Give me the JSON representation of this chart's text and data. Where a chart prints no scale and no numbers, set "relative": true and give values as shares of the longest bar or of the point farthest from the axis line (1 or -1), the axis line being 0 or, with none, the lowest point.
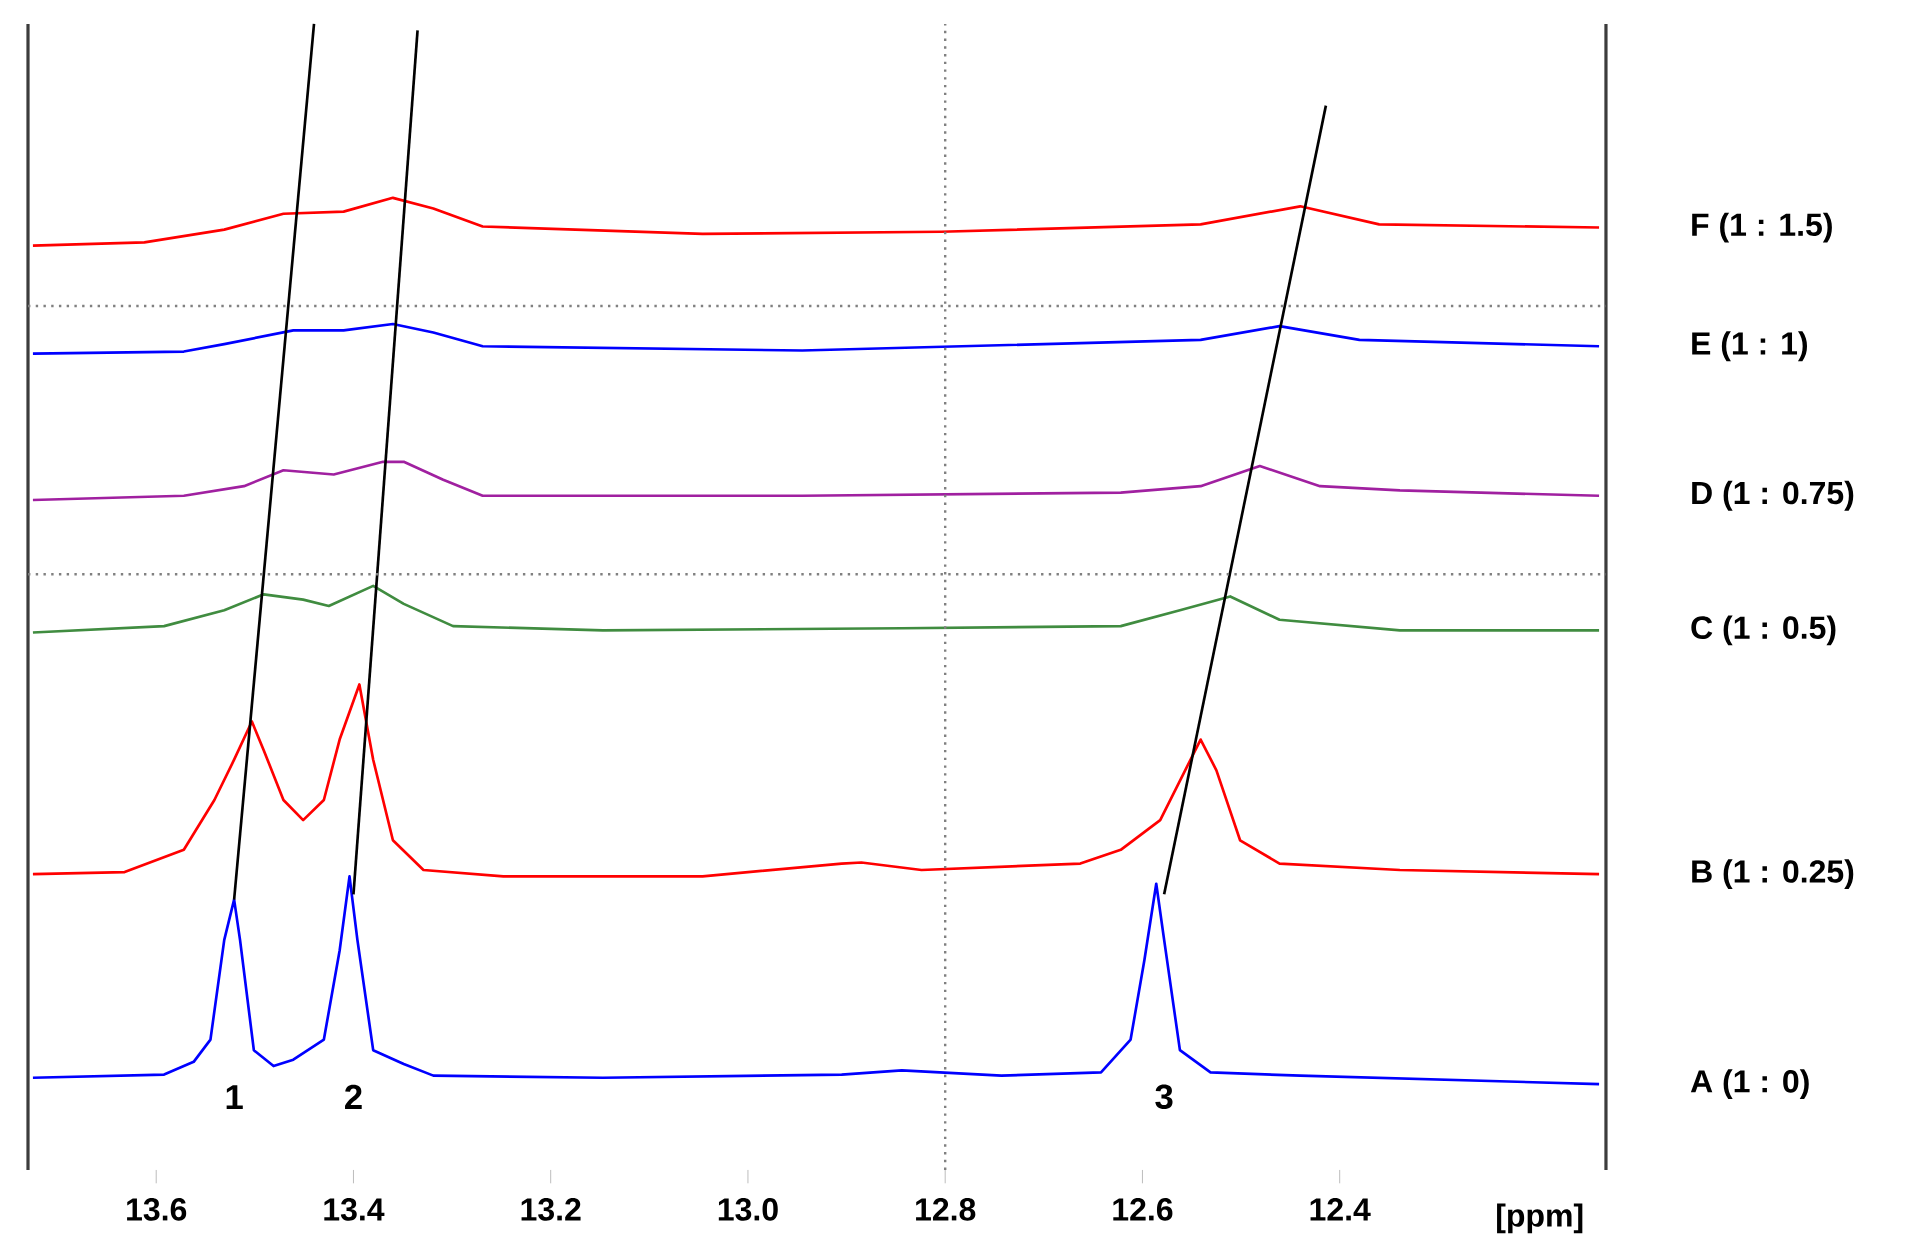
{
  "chart_data": {
    "type": "line",
    "relative": true,
    "xlabel": "[ppm]",
    "xlim": [
      13.73,
      12.13
    ],
    "xticks": [
      13.6,
      13.4,
      13.2,
      {
        "value": 13,
        "label": "13.0"
      },
      12.8,
      12.6,
      12.4
    ],
    "grid": false,
    "legend": false,
    "marker": "none",
    "line_style": "solid",
    "series": [
      {
        "name": "A (1 : 0)",
        "color": "#0000ff",
        "x": [
          13.725,
          13.592,
          13.562,
          13.545,
          13.531,
          13.521,
          13.515,
          13.501,
          13.481,
          13.461,
          13.43,
          13.414,
          13.404,
          13.396,
          13.38,
          13.349,
          13.319,
          13.147,
          12.905,
          12.844,
          12.743,
          12.642,
          12.612,
          12.598,
          12.586,
          12.578,
          12.562,
          12.531,
          12.44,
          12.137
        ],
        "values": [
          0.006,
          0.009,
          0.021,
          0.042,
          0.136,
          0.174,
          0.136,
          0.032,
          0.017,
          0.023,
          0.042,
          0.126,
          0.196,
          0.136,
          0.032,
          0.019,
          0.008,
          0.006,
          0.009,
          0.013,
          0.008,
          0.011,
          0.042,
          0.117,
          0.189,
          0.136,
          0.032,
          0.011,
          0.008,
          0
        ]
      },
      {
        "name": "B (1 : 0.25)",
        "color": "#ff0000",
        "x": [
          13.725,
          13.632,
          13.572,
          13.541,
          13.521,
          13.503,
          13.491,
          13.471,
          13.451,
          13.43,
          13.414,
          13.394,
          13.38,
          13.36,
          13.329,
          13.248,
          13.046,
          12.905,
          12.885,
          12.824,
          12.663,
          12.622,
          12.582,
          12.541,
          12.525,
          12.501,
          12.461,
          12.339,
          12.137
        ],
        "values": [
          0.198,
          0.2,
          0.221,
          0.268,
          0.306,
          0.342,
          0.315,
          0.268,
          0.249,
          0.268,
          0.325,
          0.377,
          0.306,
          0.23,
          0.202,
          0.196,
          0.196,
          0.208,
          0.209,
          0.202,
          0.208,
          0.221,
          0.249,
          0.325,
          0.296,
          0.23,
          0.208,
          0.202,
          0.198
        ]
      },
      {
        "name": "C (1 : 0.5)",
        "color": "#408c40",
        "x": [
          13.725,
          13.592,
          13.531,
          13.491,
          13.451,
          13.425,
          13.38,
          13.349,
          13.299,
          13.147,
          12.844,
          12.622,
          12.562,
          12.511,
          12.461,
          12.339,
          12.137
        ],
        "values": [
          0.426,
          0.432,
          0.447,
          0.462,
          0.457,
          0.451,
          0.47,
          0.453,
          0.432,
          0.428,
          0.43,
          0.432,
          0.447,
          0.46,
          0.438,
          0.428,
          0.428
        ]
      },
      {
        "name": "D (1 : 0.75)",
        "color": "#a020a0",
        "x": [
          13.725,
          13.572,
          13.511,
          13.471,
          13.42,
          13.37,
          13.349,
          13.309,
          13.269,
          12.945,
          12.622,
          12.541,
          12.481,
          12.42,
          12.339,
          12.137
        ],
        "values": [
          0.551,
          0.555,
          0.564,
          0.579,
          0.575,
          0.587,
          0.587,
          0.57,
          0.555,
          0.555,
          0.558,
          0.564,
          0.583,
          0.564,
          0.56,
          0.555
        ]
      },
      {
        "name": "E (1 : 1)",
        "color": "#0000ff",
        "x": [
          13.725,
          13.572,
          13.531,
          13.461,
          13.41,
          13.36,
          13.319,
          13.269,
          12.945,
          12.541,
          12.461,
          12.38,
          12.137
        ],
        "values": [
          0.689,
          0.691,
          0.698,
          0.711,
          0.711,
          0.717,
          0.709,
          0.696,
          0.692,
          0.702,
          0.715,
          0.702,
          0.696
        ]
      },
      {
        "name": "F (1 : 1.5)",
        "color": "#ff0000",
        "x": [
          13.725,
          13.612,
          13.531,
          13.471,
          13.41,
          13.36,
          13.319,
          13.269,
          13.046,
          12.804,
          12.541,
          12.44,
          12.36,
          12.137
        ],
        "values": [
          0.791,
          0.794,
          0.806,
          0.821,
          0.823,
          0.836,
          0.826,
          0.809,
          0.802,
          0.804,
          0.811,
          0.828,
          0.811,
          0.808
        ]
      },
      {
        "color": "#000000",
        "x": [
          13.521,
          13.44
        ],
        "values": [
          0.174,
          1.0
        ]
      },
      {
        "color": "#000000",
        "x": [
          13.4,
          13.335
        ],
        "values": [
          0.179,
          0.994
        ]
      },
      {
        "color": "#000000",
        "x": [
          12.578,
          12.414
        ],
        "values": [
          0.179,
          0.923
        ]
      }
    ],
    "ref_lines": [
      {
        "axis": "x",
        "value": 12.8,
        "color": "#808080",
        "line_style": "dotted"
      },
      {
        "axis": "y",
        "value": 0.734,
        "color": "#808080",
        "line_style": "dotted"
      },
      {
        "axis": "y",
        "value": 0.481,
        "color": "#808080",
        "line_style": "dotted"
      }
    ],
    "annotations": [
      "1",
      "2",
      "3"
    ]
  }
}
